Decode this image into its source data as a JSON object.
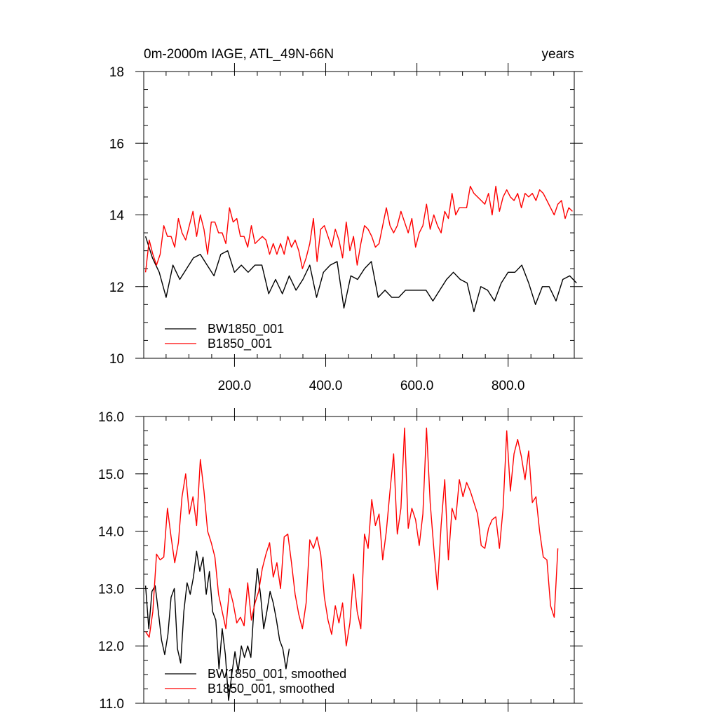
{
  "chart_data": [
    {
      "type": "line",
      "title_left": "0m-2000m IAGE, ATL_49N-66N",
      "title_right": "years",
      "xlim": [
        1,
        945
      ],
      "ylim": [
        10,
        18
      ],
      "x_ticks": [
        200,
        400,
        600,
        800
      ],
      "x_tick_labels": [
        "200.0",
        "400.0",
        "600.0",
        "800.0"
      ],
      "x_minor_step": 50,
      "y_ticks": [
        10,
        12,
        14,
        16,
        18
      ],
      "y_tick_labels": [
        "10",
        "12",
        "14",
        "16",
        "18"
      ],
      "y_minor_step": 0.5,
      "grid": false,
      "legend_position": "bottom-left",
      "series": [
        {
          "name": "BW1850_001",
          "color": "#000000",
          "x_start": 5,
          "x_step": 15,
          "values": [
            13.4,
            12.8,
            12.4,
            11.7,
            12.6,
            12.2,
            12.5,
            12.8,
            12.9,
            12.6,
            12.3,
            12.9,
            13.0,
            12.4,
            12.6,
            12.4,
            12.6,
            12.6,
            11.8,
            12.2,
            11.8,
            12.3,
            11.9,
            12.2,
            12.6,
            11.7,
            12.4,
            12.6,
            12.7,
            11.4,
            12.3,
            12.2,
            12.5,
            12.7,
            11.7,
            11.9,
            11.7,
            11.7,
            11.9,
            11.9,
            11.9,
            11.9,
            11.6,
            11.9,
            12.2,
            12.4,
            12.2,
            12.1,
            11.3,
            12.0,
            11.9,
            11.6,
            12.1,
            12.4,
            12.4,
            12.6,
            12.1,
            11.5,
            12.0,
            12.0,
            11.6,
            12.2,
            12.3,
            12.1
          ]
        },
        {
          "name": "B1850_001",
          "color": "#ff0000",
          "x_start": 5,
          "x_step": 8,
          "values": [
            12.4,
            13.3,
            12.9,
            12.6,
            12.9,
            13.7,
            13.4,
            13.4,
            13.1,
            13.9,
            13.5,
            13.3,
            13.7,
            14.1,
            13.4,
            14.0,
            13.6,
            12.9,
            13.8,
            13.8,
            13.5,
            13.5,
            13.2,
            14.2,
            13.8,
            13.9,
            13.4,
            13.4,
            13.1,
            13.7,
            13.2,
            13.3,
            13.4,
            13.3,
            12.9,
            13.2,
            12.9,
            13.2,
            12.9,
            13.4,
            13.1,
            13.3,
            13.0,
            12.5,
            12.8,
            13.2,
            13.9,
            12.7,
            13.6,
            13.7,
            13.4,
            13.1,
            13.6,
            13.3,
            12.8,
            13.8,
            13.0,
            13.4,
            12.6,
            13.2,
            13.7,
            13.6,
            13.4,
            13.1,
            13.2,
            13.7,
            14.2,
            13.7,
            13.5,
            13.7,
            14.1,
            13.8,
            13.5,
            13.9,
            13.1,
            13.5,
            13.7,
            14.3,
            13.6,
            14.0,
            13.7,
            13.5,
            14.1,
            13.9,
            14.6,
            14.0,
            14.2,
            14.2,
            14.2,
            14.8,
            14.6,
            14.5,
            14.4,
            14.3,
            14.6,
            14.0,
            14.8,
            14.1,
            14.5,
            14.7,
            14.5,
            14.4,
            14.6,
            14.2,
            14.6,
            14.5,
            14.6,
            14.4,
            14.7,
            14.6,
            14.4,
            14.2,
            14.0,
            14.3,
            14.4,
            13.9,
            14.2,
            14.1
          ]
        }
      ]
    },
    {
      "type": "line",
      "xlim": [
        1,
        945
      ],
      "ylim": [
        11,
        16
      ],
      "y_ticks": [
        11,
        12,
        13,
        14,
        15,
        16
      ],
      "y_tick_labels": [
        "11.0",
        "12.0",
        "13.0",
        "14.0",
        "15.0",
        "16.0"
      ],
      "y_minor_step": 0.25,
      "x_minor_step": 50,
      "grid": false,
      "legend_position": "bottom-left",
      "series": [
        {
          "name": "BW1850_001, smoothed",
          "color": "#000000",
          "x_start": 5,
          "x_step": 7,
          "values": [
            13.05,
            12.3,
            12.95,
            13.05,
            12.6,
            12.1,
            11.85,
            12.2,
            12.85,
            13.0,
            11.95,
            11.7,
            12.6,
            13.1,
            12.9,
            13.2,
            13.65,
            13.3,
            13.55,
            12.9,
            13.3,
            12.6,
            12.45,
            11.6,
            12.3,
            11.85,
            11.05,
            11.5,
            11.9,
            11.55,
            12.0,
            11.8,
            12.0,
            11.8,
            12.7,
            13.35,
            12.9,
            12.3,
            12.6,
            12.95,
            12.75,
            12.45,
            12.1,
            11.95,
            11.6,
            11.95
          ]
        },
        {
          "name": "B1850_001, smoothed",
          "color": "#ff0000",
          "x_start": 5,
          "x_step": 8,
          "values": [
            12.25,
            12.15,
            12.6,
            13.6,
            13.5,
            13.55,
            14.4,
            13.9,
            13.45,
            13.8,
            14.6,
            15.0,
            14.3,
            14.6,
            14.1,
            15.25,
            14.7,
            14.0,
            13.8,
            13.55,
            12.9,
            12.6,
            12.3,
            13.0,
            12.75,
            12.4,
            12.5,
            12.35,
            13.1,
            12.45,
            12.75,
            12.95,
            13.35,
            13.6,
            13.8,
            13.2,
            13.45,
            13.0,
            13.9,
            13.95,
            13.45,
            12.9,
            12.55,
            12.3,
            12.75,
            13.85,
            13.7,
            13.9,
            13.6,
            12.85,
            12.45,
            12.2,
            12.7,
            12.4,
            12.75,
            12.0,
            12.4,
            13.25,
            12.6,
            12.3,
            13.95,
            13.7,
            14.55,
            14.1,
            14.3,
            13.5,
            14.0,
            14.7,
            15.35,
            13.95,
            14.4,
            15.8,
            14.05,
            14.4,
            14.2,
            13.75,
            14.3,
            15.8,
            14.5,
            13.7,
            12.98,
            14.1,
            14.9,
            13.5,
            14.4,
            14.2,
            14.9,
            14.6,
            14.85,
            14.7,
            14.5,
            14.3,
            13.75,
            13.7,
            14.05,
            14.2,
            14.25,
            13.7,
            14.4,
            15.75,
            14.7,
            15.35,
            15.6,
            15.3,
            14.9,
            15.4,
            14.5,
            14.6,
            14.0,
            13.55,
            13.5,
            12.7,
            12.5,
            13.7
          ]
        }
      ]
    }
  ]
}
